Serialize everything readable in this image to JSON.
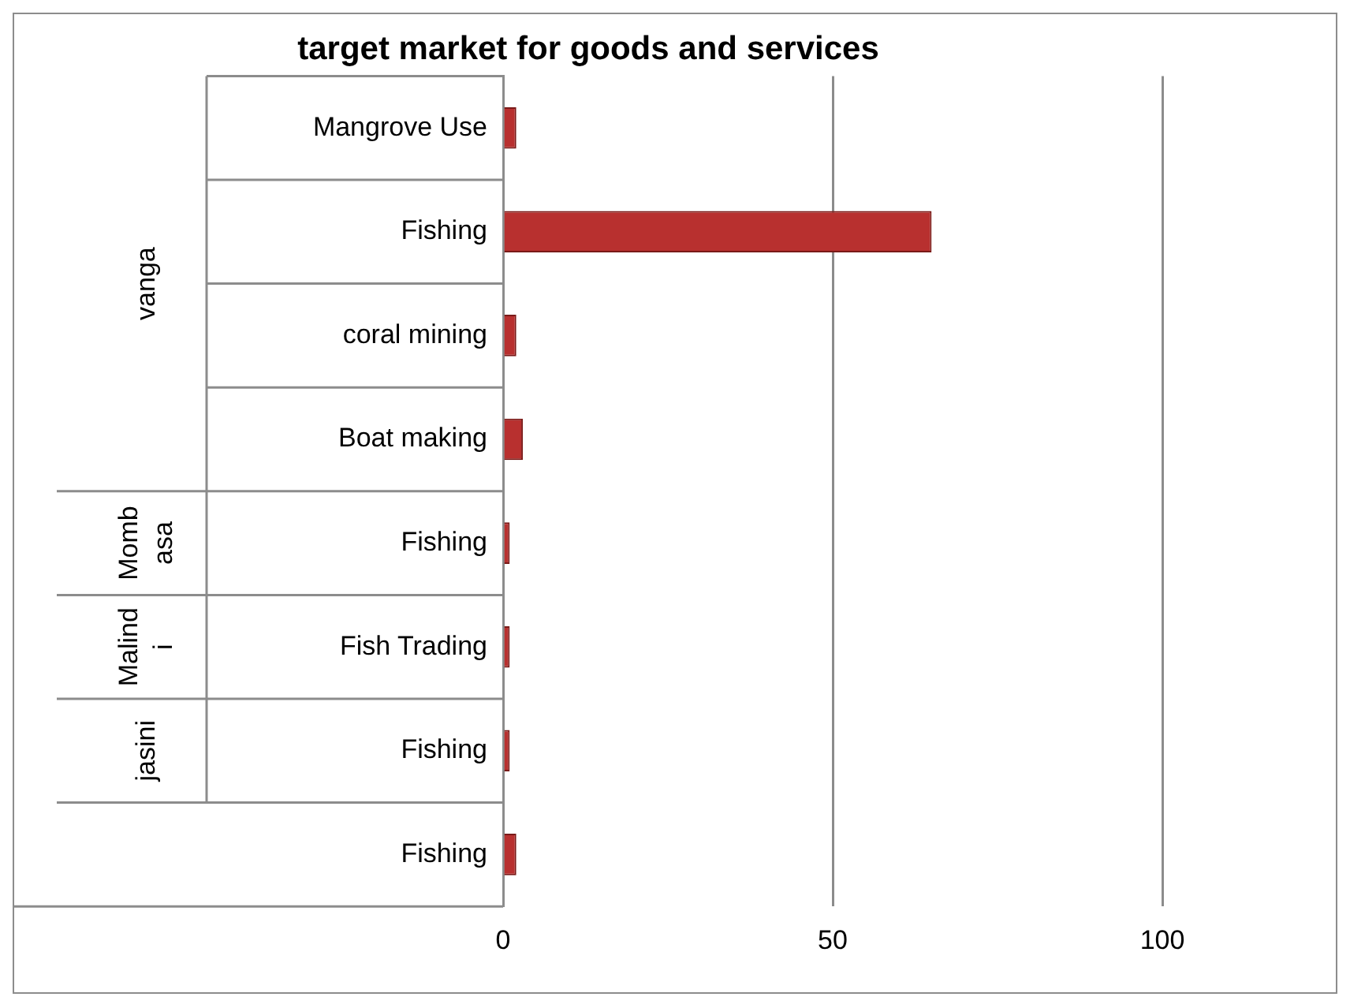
{
  "chart_data": {
    "type": "bar",
    "orientation": "horizontal",
    "title": "target market for goods and services",
    "categories": [
      "Mangrove Use",
      "Fishing",
      "coral mining",
      "Boat making",
      "Fishing",
      "Fish Trading",
      "Fishing",
      "Fishing"
    ],
    "values": [
      2,
      65,
      2,
      3,
      1,
      1,
      1,
      2
    ],
    "color": "#b8302f",
    "xlim": [
      0,
      100
    ],
    "xticks": [
      0,
      50,
      100
    ],
    "grid": "x",
    "legend": false,
    "annotations": [
      "vanga",
      "Mombasa",
      "Malindi",
      "jasini"
    ]
  }
}
